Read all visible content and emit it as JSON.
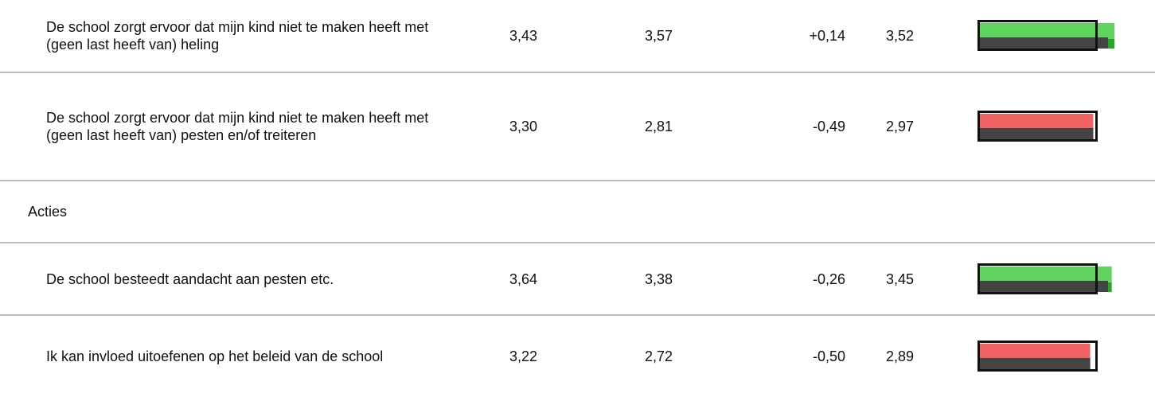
{
  "table": {
    "rows": [
      {
        "label": "De school zorgt ervoor dat mijn kind niet te maken heeft met (geen last heeft van) heling",
        "cells": [
          "3,43",
          "3,57",
          "+0,14",
          "3,52"
        ],
        "bar_color": "green"
      },
      {
        "label": "De school zorgt ervoor dat mijn kind niet te maken heeft met (geen last heeft van) pesten en/of treiteren",
        "cells": [
          "3,30",
          "2,81",
          "-0,49",
          "2,97"
        ],
        "bar_color": "red"
      },
      {
        "section": "Acties"
      },
      {
        "label": "De school besteedt aandacht aan pesten etc.",
        "cells": [
          "3,64",
          "3,38",
          "-0,26",
          "3,45"
        ],
        "bar_color": "green"
      },
      {
        "label": "Ik kan invloed uitoefenen op het beleid van de school",
        "cells": [
          "3,22",
          "2,72",
          "-0,50",
          "2,89"
        ],
        "bar_color": "red"
      }
    ]
  }
}
